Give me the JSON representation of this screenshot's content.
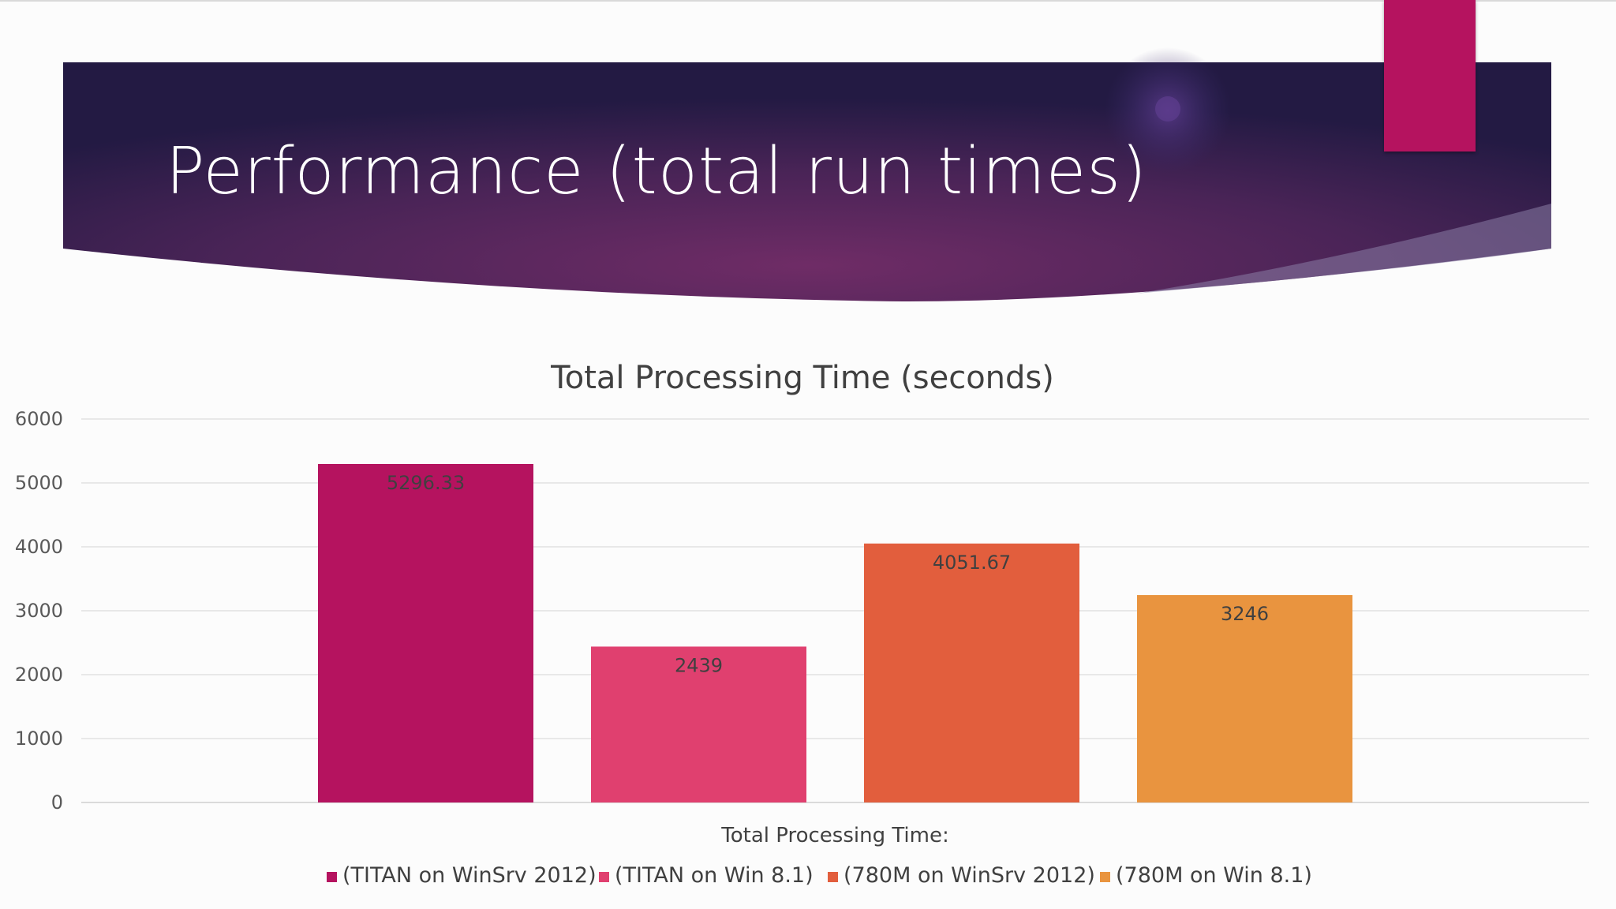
{
  "slide": {
    "title": "Performance (total run times)"
  },
  "colors": {
    "banner_dark": "#2a1d4a",
    "banner_mid": "#6a2a63",
    "accent": "#b5135f"
  },
  "chart_data": {
    "type": "bar",
    "title": "Total Processing Time (seconds)",
    "categories": [
      "Total Processing Time:"
    ],
    "series": [
      {
        "name": "(TITAN on WinSrv 2012)",
        "values": [
          5296.33
        ],
        "color": "#b5135f",
        "label": "5296.33"
      },
      {
        "name": "(TITAN on Win 8.1)",
        "values": [
          2439
        ],
        "color": "#e0406f",
        "label": "2439"
      },
      {
        "name": "(780M on WinSrv 2012)",
        "values": [
          4051.67
        ],
        "color": "#e25e3d",
        "label": "4051.67"
      },
      {
        "name": "(780M on Win 8.1)",
        "values": [
          3246
        ],
        "color": "#e9943f",
        "label": "3246"
      }
    ],
    "ylim": [
      0,
      6000
    ],
    "yticks": [
      0,
      1000,
      2000,
      3000,
      4000,
      5000,
      6000
    ],
    "grid": true,
    "legend": "bottom"
  }
}
